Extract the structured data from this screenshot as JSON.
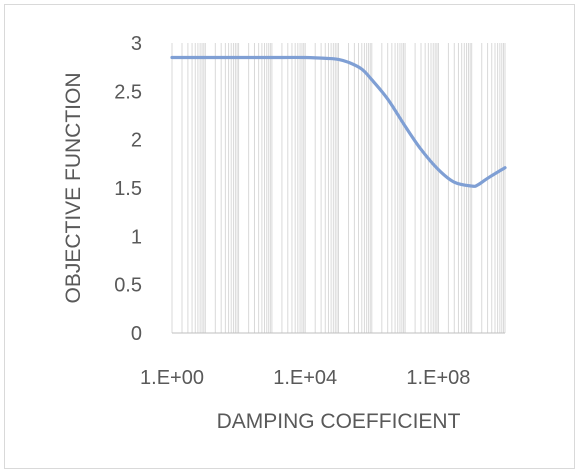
{
  "chart_data": {
    "type": "line",
    "title": "",
    "xlabel": "DAMPING COEFFICIENT",
    "ylabel": "OBJECTIVE FUNCTION",
    "x_scale": "log10",
    "xlim": [
      1,
      10000000000
    ],
    "ylim": [
      0,
      3
    ],
    "x_ticks": [
      {
        "value": 1,
        "label": "1.E+00"
      },
      {
        "value": 10000,
        "label": "1.E+04"
      },
      {
        "value": 100000000,
        "label": "1.E+08"
      }
    ],
    "y_ticks": [
      {
        "value": 0,
        "label": "0"
      },
      {
        "value": 0.5,
        "label": "0.5"
      },
      {
        "value": 1,
        "label": "1"
      },
      {
        "value": 1.5,
        "label": "1.5"
      },
      {
        "value": 2,
        "label": "2"
      },
      {
        "value": 2.5,
        "label": "2.5"
      },
      {
        "value": 3,
        "label": "3"
      }
    ],
    "grid": {
      "x_major": true,
      "x_minor": true,
      "y": false
    },
    "legend": "none",
    "series": [
      {
        "color": "#7f9fd4",
        "x": [
          1,
          10,
          100,
          1000,
          10000,
          50000,
          100000,
          200000,
          500000,
          1000000,
          3000000,
          10000000,
          30000000,
          100000000,
          300000000,
          1000000000,
          1500000000,
          3000000000,
          10000000000
        ],
        "y": [
          2.85,
          2.85,
          2.85,
          2.85,
          2.85,
          2.84,
          2.83,
          2.8,
          2.73,
          2.62,
          2.42,
          2.14,
          1.9,
          1.69,
          1.56,
          1.52,
          1.53,
          1.6,
          1.71
        ]
      }
    ]
  }
}
